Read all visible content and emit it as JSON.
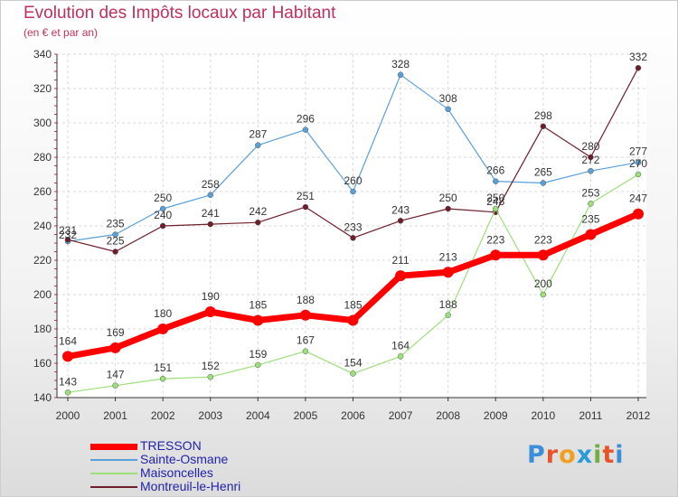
{
  "title": "Evolution des Impôts locaux par Habitant",
  "subtitle": "(en € et par an)",
  "logo": {
    "text": "Proxiti",
    "colors": [
      "#3a8fd8",
      "#e8542a",
      "#f0a020",
      "#2a9ad8",
      "#70b040",
      "#e8542a",
      "#3a8fd8"
    ]
  },
  "chart_data": {
    "type": "line",
    "x": [
      "2000",
      "2001",
      "2002",
      "2003",
      "2004",
      "2005",
      "2006",
      "2007",
      "2008",
      "2009",
      "2010",
      "2011",
      "2012"
    ],
    "ylim": [
      140,
      340
    ],
    "yticks": [
      140,
      160,
      180,
      200,
      220,
      240,
      260,
      280,
      300,
      320,
      340
    ],
    "grid": true,
    "legend_placement": "bottom-left",
    "series": [
      {
        "name": "Sainte-Osmane",
        "color": "#5aa0d8",
        "values": [
          231,
          235,
          250,
          258,
          287,
          296,
          260,
          328,
          308,
          266,
          265,
          272,
          277
        ],
        "labels": [
          "231",
          "235",
          "250",
          "258",
          "287",
          "296",
          "260",
          "328",
          "308",
          "266",
          "265",
          "272",
          "277"
        ]
      },
      {
        "name": "Montreuil-le-Henri",
        "color": "#6e1e2a",
        "values": [
          232,
          225,
          240,
          241,
          242,
          251,
          233,
          243,
          250,
          248,
          298,
          280,
          332
        ],
        "labels": [
          "232",
          "225",
          "240",
          "241",
          "242",
          "251",
          "233",
          "243",
          "250",
          "248",
          "298",
          "280",
          "332"
        ]
      },
      {
        "name": "Maisoncelles",
        "color": "#9be07a",
        "values": [
          143,
          147,
          151,
          152,
          159,
          167,
          154,
          164,
          188,
          250,
          200,
          253,
          270
        ],
        "labels": [
          "143",
          "147",
          "151",
          "152",
          "159",
          "167",
          "154",
          "164",
          "188",
          "250",
          "200",
          "253",
          "270"
        ]
      },
      {
        "name": "TRESSON",
        "color": "#ff0000",
        "values": [
          164,
          169,
          180,
          190,
          185,
          188,
          185,
          211,
          213,
          223,
          223,
          235,
          247
        ],
        "labels": [
          "164",
          "169",
          "180",
          "190",
          "185",
          "188",
          "185",
          "211",
          "213",
          "223",
          "223",
          "235",
          "247"
        ]
      }
    ],
    "legend": [
      "TRESSON",
      "Sainte-Osmane",
      "Maisoncelles",
      "Montreuil-le-Henri"
    ]
  }
}
